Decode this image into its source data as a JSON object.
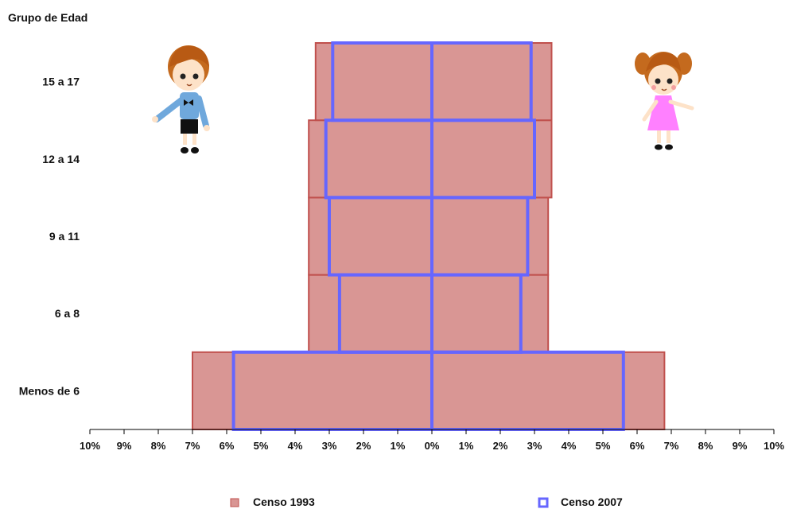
{
  "chart_data": {
    "type": "bar",
    "subtype": "population-pyramid",
    "ylabel": "Grupo de Edad",
    "categories": [
      "Menos de 6",
      "6 a 8",
      "9 a 11",
      "12 a 14",
      "15 a 17"
    ],
    "xlim": [
      -10,
      10
    ],
    "x_ticks": [
      "10%",
      "9%",
      "8%",
      "7%",
      "6%",
      "5%",
      "4%",
      "3%",
      "2%",
      "1%",
      "0%",
      "1%",
      "2%",
      "3%",
      "4%",
      "5%",
      "6%",
      "7%",
      "8%",
      "9%",
      "10%"
    ],
    "x_tick_values": [
      -10,
      -9,
      -8,
      -7,
      -6,
      -5,
      -4,
      -3,
      -2,
      -1,
      0,
      1,
      2,
      3,
      4,
      5,
      6,
      7,
      8,
      9,
      10
    ],
    "series": [
      {
        "name": "Censo 1993",
        "style": "filled",
        "fill": "#d99694",
        "stroke": "#c0504d",
        "left_values": [
          7.0,
          3.6,
          3.6,
          3.6,
          3.4
        ],
        "right_values": [
          6.8,
          3.4,
          3.4,
          3.5,
          3.5
        ]
      },
      {
        "name": "Censo 2007",
        "style": "outline",
        "stroke": "#6666ff",
        "left_values": [
          5.8,
          2.7,
          3.0,
          3.1,
          2.9
        ],
        "right_values": [
          5.6,
          2.6,
          2.8,
          3.0,
          2.9
        ]
      }
    ],
    "legend_position": "bottom",
    "grid": false
  },
  "icons": [
    "boy-figure-icon",
    "girl-figure-icon"
  ]
}
